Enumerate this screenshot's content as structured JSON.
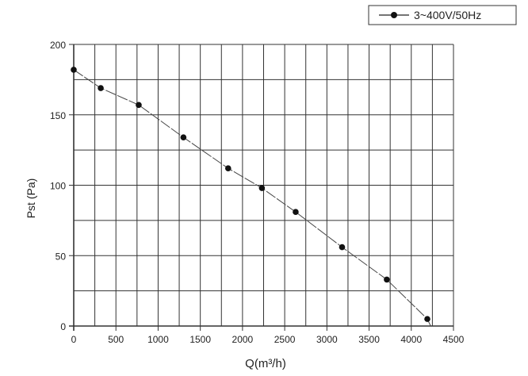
{
  "chart_data": {
    "type": "line",
    "xlabel": "Q(m³/h)",
    "ylabel": "Pst (Pa)",
    "xlim": [
      0,
      4500
    ],
    "ylim": [
      0,
      200
    ],
    "xticks": [
      0,
      500,
      1000,
      1500,
      2000,
      2500,
      3000,
      3500,
      4000,
      4500
    ],
    "yticks": [
      0,
      50,
      100,
      150,
      200
    ],
    "grid": true,
    "legend_position": "top-right",
    "series": [
      {
        "name": "3~400V/50Hz",
        "color": "#222222",
        "x": [
          0,
          320,
          770,
          1300,
          1830,
          2230,
          2630,
          3180,
          3710,
          4190
        ],
        "y": [
          182,
          169,
          157,
          134,
          112,
          98,
          81,
          56,
          33,
          5
        ]
      }
    ]
  }
}
